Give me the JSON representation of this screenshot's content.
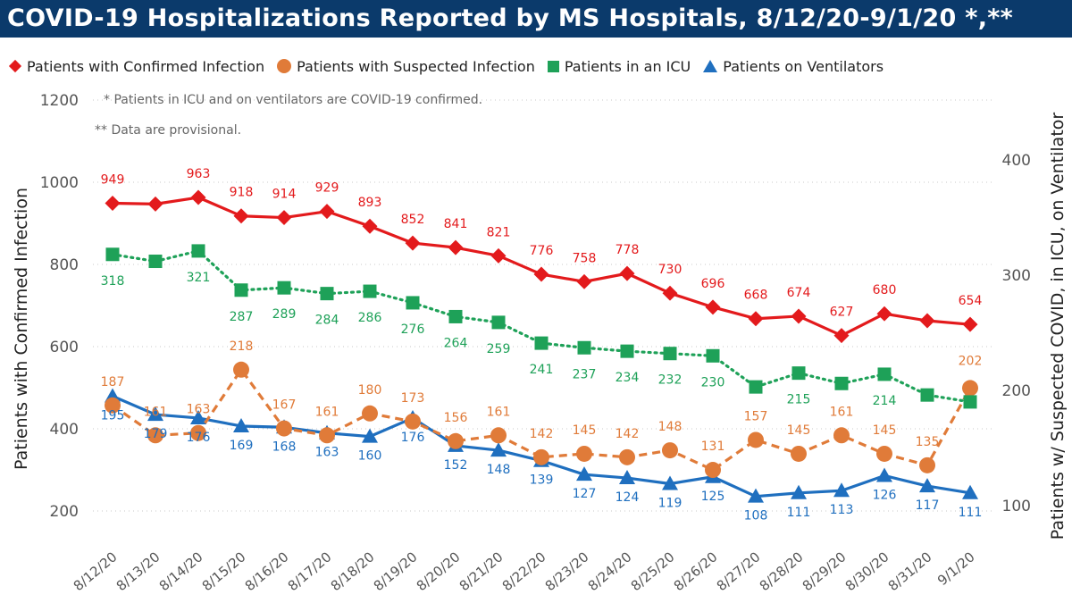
{
  "title": "COVID-19 Hospitalizations Reported by MS Hospitals, 8/12/20-9/1/20 *,**",
  "notes": [
    "* Patients in ICU and on ventilators are COVID-19 confirmed.",
    "** Data are provisional."
  ],
  "colors": {
    "confirmed": "#e31a1c",
    "suspected": "#e07b39",
    "icu": "#1ea158",
    "ventilators": "#1f6fbf",
    "title_bg": "#0b3a6b"
  },
  "chart_data": {
    "type": "line",
    "title": "COVID-19 Hospitalizations Reported by MS Hospitals, 8/12/20-9/1/20 *,**",
    "xlabel": "",
    "ylabel": "Patients with Confirmed Infection",
    "ylabel_right": "Patients w/ Suspected COVID, in ICU, on Ventilator",
    "ylim": [
      150,
      1200
    ],
    "y_ticks": [
      200,
      400,
      600,
      800,
      1000,
      1200
    ],
    "ylim_right": [
      80,
      450
    ],
    "y_ticks_right": [
      100,
      200,
      300,
      400
    ],
    "grid": true,
    "legend_position": "top",
    "categories": [
      "8/12/20",
      "8/13/20",
      "8/14/20",
      "8/15/20",
      "8/16/20",
      "8/17/20",
      "8/18/20",
      "8/19/20",
      "8/20/20",
      "8/21/20",
      "8/22/20",
      "8/23/20",
      "8/24/20",
      "8/25/20",
      "8/26/20",
      "8/27/20",
      "8/28/20",
      "8/29/20",
      "8/30/20",
      "8/31/20",
      "9/1/20"
    ],
    "series": [
      {
        "name": "Patients with Confirmed Infection",
        "axis": "left",
        "marker": "diamond",
        "style": "solid",
        "values": [
          949,
          947,
          963,
          918,
          914,
          929,
          893,
          852,
          841,
          821,
          776,
          758,
          778,
          730,
          696,
          668,
          674,
          627,
          680,
          663,
          654
        ],
        "labels": [
          "949",
          null,
          "963",
          "918",
          "914",
          "929",
          "893",
          "852",
          "841",
          "821",
          "776",
          "758",
          "778",
          "730",
          "696",
          "668",
          "674",
          "627",
          "680",
          null,
          "654"
        ]
      },
      {
        "name": "Patients with Suspected Infection",
        "axis": "right",
        "marker": "circle",
        "style": "dashed",
        "values": [
          187,
          161,
          163,
          218,
          167,
          161,
          180,
          173,
          156,
          161,
          142,
          145,
          142,
          148,
          131,
          157,
          145,
          161,
          145,
          135,
          202
        ],
        "labels": [
          "187",
          "161",
          "163",
          "218",
          "167",
          "161",
          "180",
          "173",
          "156",
          "161",
          "142",
          "145",
          "142",
          "148",
          "131",
          "157",
          "145",
          "161",
          "145",
          "135",
          "202"
        ]
      },
      {
        "name": "Patients in an ICU",
        "axis": "right",
        "marker": "square",
        "style": "dotted",
        "values": [
          318,
          312,
          321,
          287,
          289,
          284,
          286,
          276,
          264,
          259,
          241,
          237,
          234,
          232,
          230,
          203,
          215,
          206,
          214,
          196,
          190
        ],
        "labels": [
          "318",
          null,
          "321",
          "287",
          "289",
          "284",
          "286",
          "276",
          "264",
          "259",
          "241",
          "237",
          "234",
          "232",
          "230",
          null,
          "215",
          null,
          "214",
          null,
          null
        ]
      },
      {
        "name": "Patients on Ventilators",
        "axis": "right",
        "marker": "triangle",
        "style": "solid",
        "values": [
          195,
          179,
          176,
          169,
          168,
          163,
          160,
          176,
          152,
          148,
          139,
          127,
          124,
          119,
          125,
          108,
          111,
          113,
          126,
          117,
          111
        ],
        "labels": [
          "195",
          "179",
          "176",
          "169",
          "168",
          "163",
          "160",
          "176",
          "152",
          "148",
          "139",
          "127",
          "124",
          "119",
          "125",
          "108",
          "111",
          "113",
          "126",
          "117",
          "111"
        ]
      }
    ]
  }
}
